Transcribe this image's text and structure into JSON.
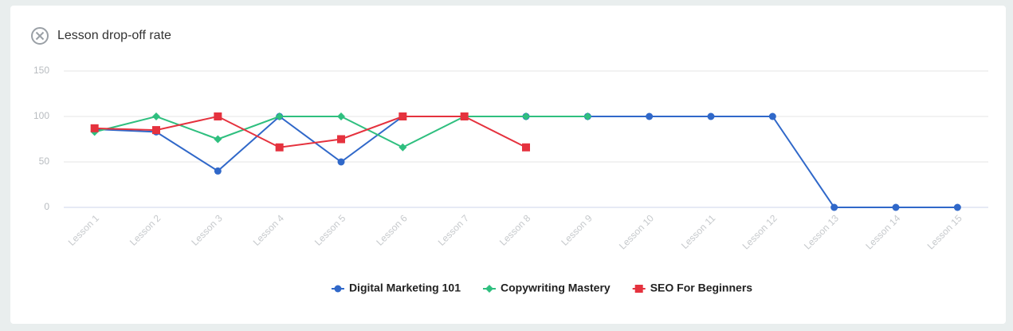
{
  "chart_data": {
    "type": "line",
    "title": "Lesson drop-off rate",
    "categories": [
      "Lesson 1",
      "Lesson 2",
      "Lesson 3",
      "Lesson 4",
      "Lesson 5",
      "Lesson 6",
      "Lesson 7",
      "Lesson 8",
      "Lesson 9",
      "Lesson 10",
      "Lesson 11",
      "Lesson 12",
      "Lesson 13",
      "Lesson 14",
      "Lesson 15"
    ],
    "series": [
      {
        "name": "Digital Marketing 101",
        "color": "#3068c9",
        "marker": "circle",
        "values": [
          86,
          83,
          40,
          100,
          50,
          100,
          100,
          100,
          100,
          100,
          100,
          100,
          0,
          0,
          0
        ]
      },
      {
        "name": "Copywriting Mastery",
        "color": "#2fbf7f",
        "marker": "diamond",
        "values": [
          83,
          100,
          75,
          100,
          100,
          66,
          100,
          100,
          100,
          null,
          null,
          null,
          null,
          null,
          null
        ]
      },
      {
        "name": "SEO For Beginners",
        "color": "#e5323e",
        "marker": "square",
        "values": [
          87,
          85,
          100,
          66,
          75,
          100,
          100,
          66,
          null,
          null,
          null,
          null,
          null,
          null,
          null
        ]
      }
    ],
    "ylim": [
      0,
      150
    ],
    "yticks": [
      0,
      50,
      100,
      150
    ],
    "grid": true
  }
}
